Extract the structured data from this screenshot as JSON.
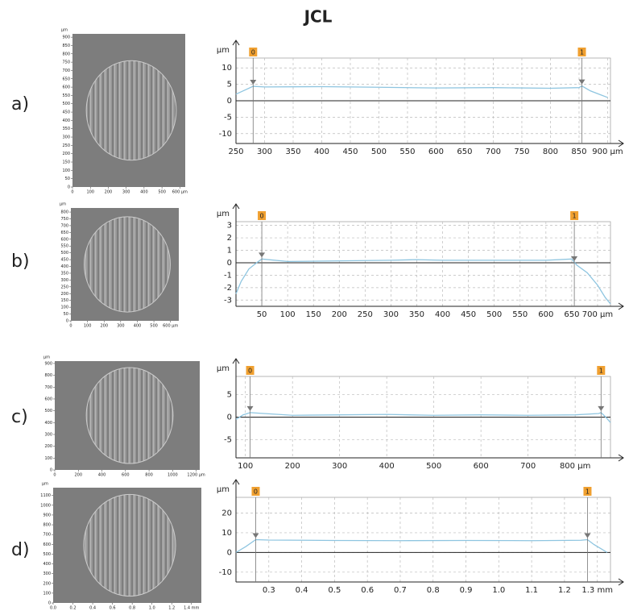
{
  "title": "JCL",
  "panel_labels": [
    "a)",
    "b)",
    "c)",
    "d)"
  ],
  "chart_data": [
    {
      "type": "image",
      "ylabel": "µm",
      "xlim": [
        0,
        630
      ],
      "ylim": [
        0,
        920
      ],
      "xticks": [
        0,
        100,
        200,
        300,
        400,
        500,
        {
          "value": 600,
          "label": "600 µm"
        }
      ],
      "yticks": [
        0,
        50,
        100,
        150,
        200,
        250,
        300,
        350,
        400,
        450,
        500,
        550,
        600,
        650,
        700,
        750,
        800,
        850,
        900
      ]
    },
    {
      "type": "line",
      "ylabel": "µm",
      "xlim": [
        250,
        905
      ],
      "ylim": [
        -13,
        13
      ],
      "xticks": [
        250,
        300,
        350,
        400,
        450,
        500,
        550,
        600,
        650,
        700,
        750,
        800,
        850,
        {
          "value": 900,
          "label": "900 µm"
        }
      ],
      "yticks": [
        -10,
        -5,
        0,
        5,
        10
      ],
      "grid": true,
      "markers": [
        {
          "x": 280,
          "label": "0"
        },
        {
          "x": 855,
          "label": "1"
        }
      ],
      "x": [
        250,
        265,
        280,
        300,
        400,
        500,
        600,
        700,
        800,
        850,
        855,
        870,
        885,
        900
      ],
      "series": [
        {
          "color": "#8ec5e0",
          "values": [
            2,
            3.2,
            4.4,
            4.2,
            4.3,
            4.1,
            3.9,
            4.0,
            3.8,
            4.0,
            4.5,
            3.0,
            2.0,
            1.0
          ]
        }
      ]
    },
    {
      "type": "image",
      "ylabel": "µm",
      "xlim": [
        0,
        650
      ],
      "ylim": [
        0,
        830
      ],
      "xticks": [
        0,
        100,
        200,
        300,
        400,
        500,
        {
          "value": 600,
          "label": "600 µm"
        }
      ],
      "yticks": [
        0,
        50,
        100,
        150,
        200,
        250,
        300,
        350,
        400,
        450,
        500,
        550,
        600,
        650,
        700,
        750,
        800
      ]
    },
    {
      "type": "line",
      "ylabel": "µm",
      "xlim": [
        0,
        725
      ],
      "ylim": [
        -3.5,
        3.3
      ],
      "xticks": [
        50,
        100,
        150,
        200,
        250,
        300,
        350,
        400,
        450,
        500,
        550,
        600,
        650,
        {
          "value": 700,
          "label": "700 µm"
        }
      ],
      "yticks": [
        -3,
        -2,
        -1,
        0,
        1,
        2,
        3
      ],
      "grid": true,
      "markers": [
        {
          "x": 50,
          "label": "0"
        },
        {
          "x": 655,
          "label": "1"
        }
      ],
      "x": [
        0,
        10,
        25,
        40,
        50,
        100,
        200,
        300,
        350,
        400,
        500,
        600,
        650,
        660,
        680,
        700,
        715,
        725
      ],
      "series": [
        {
          "color": "#8ec5e0",
          "values": [
            -2.5,
            -1.5,
            -0.5,
            0,
            0.3,
            0.1,
            0.15,
            0.2,
            0.25,
            0.2,
            0.2,
            0.2,
            0.3,
            -0.2,
            -0.8,
            -1.8,
            -2.8,
            -3.3
          ]
        }
      ]
    },
    {
      "type": "image",
      "ylabel": "µm",
      "xlim": [
        0,
        1230
      ],
      "ylim": [
        0,
        920
      ],
      "xticks": [
        0,
        200,
        400,
        600,
        800,
        1000,
        {
          "value": 1200,
          "label": "1200 µm"
        }
      ],
      "yticks": [
        0,
        100,
        200,
        300,
        400,
        500,
        600,
        700,
        800,
        900
      ]
    },
    {
      "type": "line",
      "ylabel": "µm",
      "xlim": [
        80,
        875
      ],
      "ylim": [
        -9,
        9
      ],
      "xticks": [
        100,
        200,
        300,
        400,
        500,
        600,
        700,
        {
          "value": 800,
          "label": "800 µm"
        }
      ],
      "yticks": [
        -5,
        0,
        5
      ],
      "grid": true,
      "markers": [
        {
          "x": 110,
          "label": "0"
        },
        {
          "x": 855,
          "label": "1"
        }
      ],
      "x": [
        80,
        95,
        110,
        200,
        300,
        400,
        500,
        600,
        700,
        800,
        850,
        855,
        865,
        875
      ],
      "series": [
        {
          "color": "#8ec5e0",
          "values": [
            -0.5,
            0.5,
            1,
            0.4,
            0.5,
            0.6,
            0.4,
            0.5,
            0.4,
            0.5,
            0.8,
            1,
            0,
            -1.2
          ]
        }
      ]
    },
    {
      "type": "image",
      "ylabel": "µm",
      "xlim": [
        0,
        1.5
      ],
      "ylim": [
        0,
        1180
      ],
      "xticks": [
        {
          "value": 0,
          "label": "0.0"
        },
        0.2,
        0.4,
        0.6,
        0.8,
        {
          "value": 1,
          "label": "1.0"
        },
        1.2,
        {
          "value": 1.4,
          "label": "1.4 mm"
        }
      ],
      "yticks": [
        0,
        100,
        200,
        300,
        400,
        500,
        600,
        700,
        800,
        900,
        1000,
        1100
      ]
    },
    {
      "type": "line",
      "ylabel": "µm",
      "xlim": [
        0.2,
        1.34
      ],
      "ylim": [
        -15,
        28
      ],
      "xticks": [
        0.3,
        0.4,
        0.5,
        0.6,
        0.7,
        0.8,
        0.9,
        {
          "value": 1,
          "label": "1.0"
        },
        1.1,
        1.2,
        {
          "value": 1.3,
          "label": "1.3 mm"
        }
      ],
      "yticks": [
        -10,
        0,
        10,
        20
      ],
      "grid": true,
      "markers": [
        {
          "x": 0.26,
          "label": "0"
        },
        {
          "x": 1.27,
          "label": "1"
        }
      ],
      "x": [
        0.2,
        0.23,
        0.26,
        0.3,
        0.5,
        0.7,
        0.9,
        1.1,
        1.25,
        1.27,
        1.29,
        1.31,
        1.33
      ],
      "series": [
        {
          "color": "#8ec5e0",
          "values": [
            0,
            3,
            6.5,
            6.3,
            6.1,
            6,
            6.1,
            6,
            6.2,
            6.5,
            4,
            2,
            0
          ]
        }
      ]
    }
  ]
}
